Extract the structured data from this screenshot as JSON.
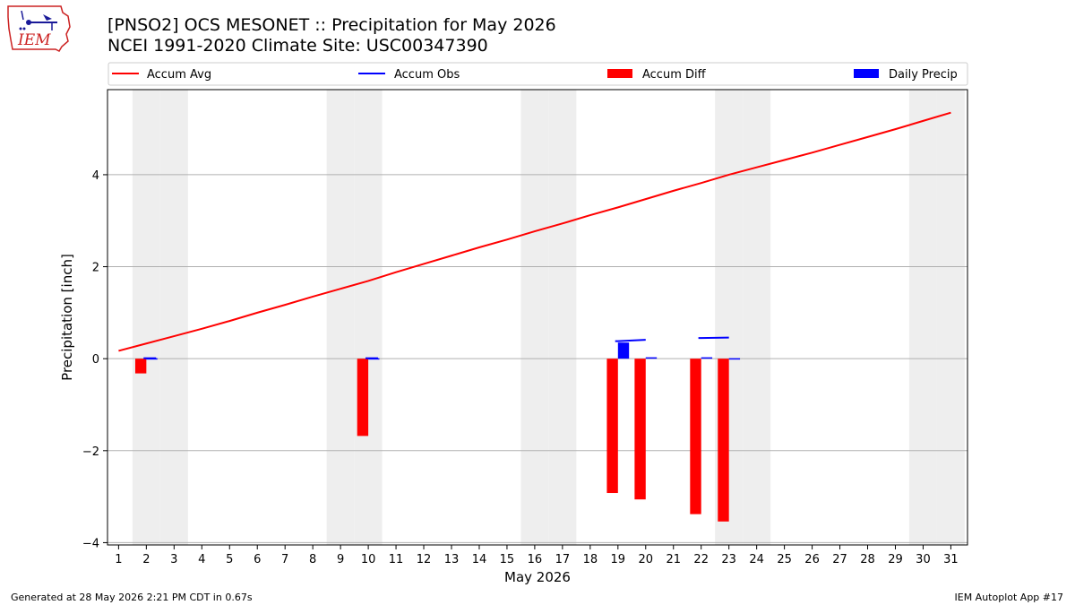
{
  "title": {
    "line1": "[PNSO2] OCS MESONET :: Precipitation for May 2026",
    "line2": "NCEI 1991-2020 Climate Site: USC00347390"
  },
  "logo": {
    "icon": "iem-logo-icon",
    "text": "IEM"
  },
  "footer": {
    "left": "Generated at 28 May 2026 2:21 PM CDT in 0.67s",
    "right": "IEM Autoplot App #17"
  },
  "chart_data": {
    "type": "bar",
    "xlabel": "May 2026",
    "ylabel": "Precipitation [inch]",
    "xlim": [
      0.6,
      31.6
    ],
    "ylim": [
      -4.05,
      5.85
    ],
    "yticks": [
      -4,
      -2,
      0,
      2,
      4
    ],
    "ytick_labels": [
      "−4",
      "−2",
      "0",
      "2",
      "4"
    ],
    "xticks": [
      1,
      2,
      3,
      4,
      5,
      6,
      7,
      8,
      9,
      10,
      11,
      12,
      13,
      14,
      15,
      16,
      17,
      18,
      19,
      20,
      21,
      22,
      23,
      24,
      25,
      26,
      27,
      28,
      29,
      30,
      31
    ],
    "grid": "horizontal",
    "legend_position": "top",
    "weekend_shading_days": [
      2,
      3,
      9,
      10,
      16,
      17,
      23,
      24,
      30,
      31
    ],
    "colors": {
      "avg": "#ff0000",
      "obs": "#0000ff",
      "diff": "#ff0000",
      "daily": "#0000ff",
      "weekend": "#eeeeee"
    },
    "legend": [
      "Accum Avg",
      "Accum Obs",
      "Accum Diff",
      "Daily Precip"
    ],
    "accum_avg": {
      "days": [
        1,
        2,
        3,
        4,
        5,
        6,
        7,
        8,
        9,
        10,
        11,
        12,
        13,
        14,
        15,
        16,
        17,
        18,
        19,
        20,
        21,
        22,
        23,
        24,
        25,
        26,
        27,
        28,
        29,
        30,
        31
      ],
      "values": [
        0.17,
        0.33,
        0.49,
        0.65,
        0.82,
        1.0,
        1.17,
        1.35,
        1.52,
        1.69,
        1.88,
        2.06,
        2.24,
        2.42,
        2.59,
        2.77,
        2.94,
        3.12,
        3.29,
        3.47,
        3.65,
        3.82,
        4.0,
        4.16,
        4.32,
        4.48,
        4.65,
        4.82,
        4.99,
        5.17,
        5.35
      ]
    },
    "accum_obs_segments": [
      {
        "days": [
          1.9,
          2.35
        ],
        "values": [
          0.01,
          0.01
        ]
      },
      {
        "days": [
          9.9,
          10.35
        ],
        "values": [
          0.01,
          0.01
        ]
      },
      {
        "days": [
          18.9,
          19.0,
          20.0
        ],
        "values": [
          0.38,
          0.38,
          0.41
        ]
      },
      {
        "days": [
          21.9,
          22.0,
          23.0
        ],
        "values": [
          0.45,
          0.45,
          0.46
        ]
      }
    ],
    "accum_diff": {
      "days": [
        2,
        10,
        19,
        20,
        22,
        23
      ],
      "values": [
        -0.32,
        -1.68,
        -2.92,
        -3.06,
        -3.38,
        -3.54
      ]
    },
    "daily_precip": {
      "days": [
        2,
        10,
        19,
        20,
        22,
        23
      ],
      "values": [
        0.01,
        0.01,
        0.35,
        0.03,
        0.03,
        0.01
      ]
    }
  }
}
